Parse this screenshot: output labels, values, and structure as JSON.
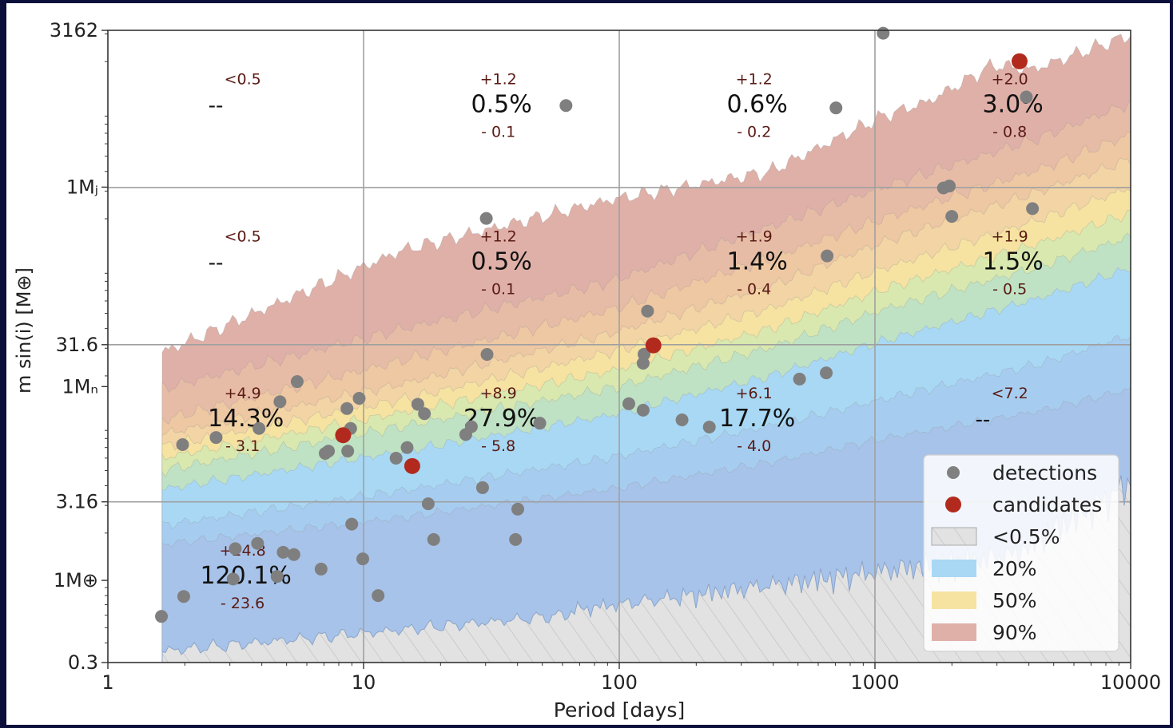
{
  "chart_data": {
    "type": "scatter",
    "xlabel": "Period [days]",
    "ylabel": "m sin(i) [M⊕]",
    "x_scale": "log",
    "y_scale": "log",
    "xlim": [
      1,
      10000
    ],
    "ylim": [
      0.3,
      3162
    ],
    "x_ticks": [
      {
        "value": 1,
        "label": "1"
      },
      {
        "value": 10,
        "label": "10"
      },
      {
        "value": 100,
        "label": "100"
      },
      {
        "value": 1000,
        "label": "1000"
      },
      {
        "value": 10000,
        "label": "10000"
      }
    ],
    "y_ticks": [
      {
        "value": 0.3,
        "label": "0.3"
      },
      {
        "value": 1,
        "label": "1M⊕"
      },
      {
        "value": 3.16,
        "label": "3.16"
      },
      {
        "value": 17.1,
        "label": "1Mₙ"
      },
      {
        "value": 31.6,
        "label": "31.6"
      },
      {
        "value": 317.8,
        "label": "1Mⱼ"
      },
      {
        "value": 3162,
        "label": "3162"
      }
    ],
    "grid": true,
    "legend_position": "bottom-right",
    "legend": [
      {
        "label": "detections",
        "marker": "circle",
        "color": "#808080"
      },
      {
        "label": "candidates",
        "marker": "circle",
        "color": "#b22a1e"
      },
      {
        "label": "<0.5%",
        "marker": "patch",
        "color": "#d9d9d9",
        "hatch": true
      },
      {
        "label": "20%",
        "marker": "patch",
        "color": "#a8d8f4"
      },
      {
        "label": "50%",
        "marker": "patch",
        "color": "#f6e3a2"
      },
      {
        "label": "90%",
        "marker": "patch",
        "color": "#dfb0a8"
      }
    ],
    "occurrence_bins": [
      {
        "x": 3.2,
        "y": 1000,
        "upper": "<0.5",
        "rate": "--",
        "lower": ""
      },
      {
        "x": 32,
        "y": 1000,
        "upper": "+1.2",
        "rate": "0.5%",
        "lower": "- 0.1"
      },
      {
        "x": 320,
        "y": 1000,
        "upper": "+1.2",
        "rate": "0.6%",
        "lower": "- 0.2"
      },
      {
        "x": 3200,
        "y": 1000,
        "upper": "+2.0",
        "rate": "3.0%",
        "lower": "- 0.8"
      },
      {
        "x": 3.2,
        "y": 100,
        "upper": "<0.5",
        "rate": "--",
        "lower": ""
      },
      {
        "x": 32,
        "y": 100,
        "upper": "+1.2",
        "rate": "0.5%",
        "lower": "- 0.1"
      },
      {
        "x": 320,
        "y": 100,
        "upper": "+1.9",
        "rate": "1.4%",
        "lower": "- 0.4"
      },
      {
        "x": 3200,
        "y": 100,
        "upper": "+1.9",
        "rate": "1.5%",
        "lower": "- 0.5"
      },
      {
        "x": 3.2,
        "y": 10,
        "upper": "+4.9",
        "rate": "14.3%",
        "lower": "- 3.1"
      },
      {
        "x": 32,
        "y": 10,
        "upper": "+8.9",
        "rate": "27.9%",
        "lower": "- 5.8"
      },
      {
        "x": 320,
        "y": 10,
        "upper": "+6.1",
        "rate": "17.7%",
        "lower": "- 4.0"
      },
      {
        "x": 3200,
        "y": 10,
        "upper": "<7.2",
        "rate": "--",
        "lower": ""
      },
      {
        "x": 3.2,
        "y": 1,
        "upper": "+24.8",
        "rate": "120.1%",
        "lower": "- 23.6"
      }
    ],
    "detections": [
      [
        1.62,
        0.59
      ],
      [
        1.98,
        0.79
      ],
      [
        1.96,
        7.31
      ],
      [
        2.65,
        8.11
      ],
      [
        3.15,
        1.59
      ],
      [
        3.09,
        1.02
      ],
      [
        3.85,
        1.72
      ],
      [
        3.9,
        9.26
      ],
      [
        4.59,
        1.06
      ],
      [
        4.71,
        13.7
      ],
      [
        4.85,
        1.51
      ],
      [
        5.34,
        1.46
      ],
      [
        5.5,
        18.4
      ],
      [
        6.82,
        1.18
      ],
      [
        7.08,
        6.43
      ],
      [
        7.29,
        6.65
      ],
      [
        8.61,
        12.4
      ],
      [
        8.67,
        6.65
      ],
      [
        8.9,
        9.26
      ],
      [
        8.99,
        2.28
      ],
      [
        9.61,
        14.4
      ],
      [
        9.93,
        1.37
      ],
      [
        11.4,
        0.8
      ],
      [
        13.4,
        5.99
      ],
      [
        14.8,
        7.0
      ],
      [
        16.3,
        13.2
      ],
      [
        17.3,
        11.5
      ],
      [
        17.9,
        3.07
      ],
      [
        18.8,
        1.82
      ],
      [
        25.1,
        8.47
      ],
      [
        26.4,
        9.51
      ],
      [
        29.2,
        3.89
      ],
      [
        30.2,
        201
      ],
      [
        30.4,
        27.4
      ],
      [
        39.3,
        1.82
      ],
      [
        40.1,
        2.84
      ],
      [
        48.9,
        10.0
      ],
      [
        61.9,
        1050
      ],
      [
        109,
        13.3
      ],
      [
        124,
        12.1
      ],
      [
        124,
        24.1
      ],
      [
        125,
        27.5
      ],
      [
        129,
        51.7
      ],
      [
        176,
        10.5
      ],
      [
        225,
        9.45
      ],
      [
        507,
        19.1
      ],
      [
        645,
        20.9
      ],
      [
        650,
        116
      ],
      [
        704,
        1015
      ],
      [
        1077,
        3031
      ],
      [
        1853,
        314
      ],
      [
        1953,
        323
      ],
      [
        1998,
        207
      ],
      [
        3908,
        1190
      ],
      [
        4131,
        232
      ]
    ],
    "candidates": [
      [
        8.32,
        8.39
      ],
      [
        15.5,
        5.34
      ],
      [
        136,
        31.3
      ],
      [
        3677,
        2010
      ]
    ]
  }
}
